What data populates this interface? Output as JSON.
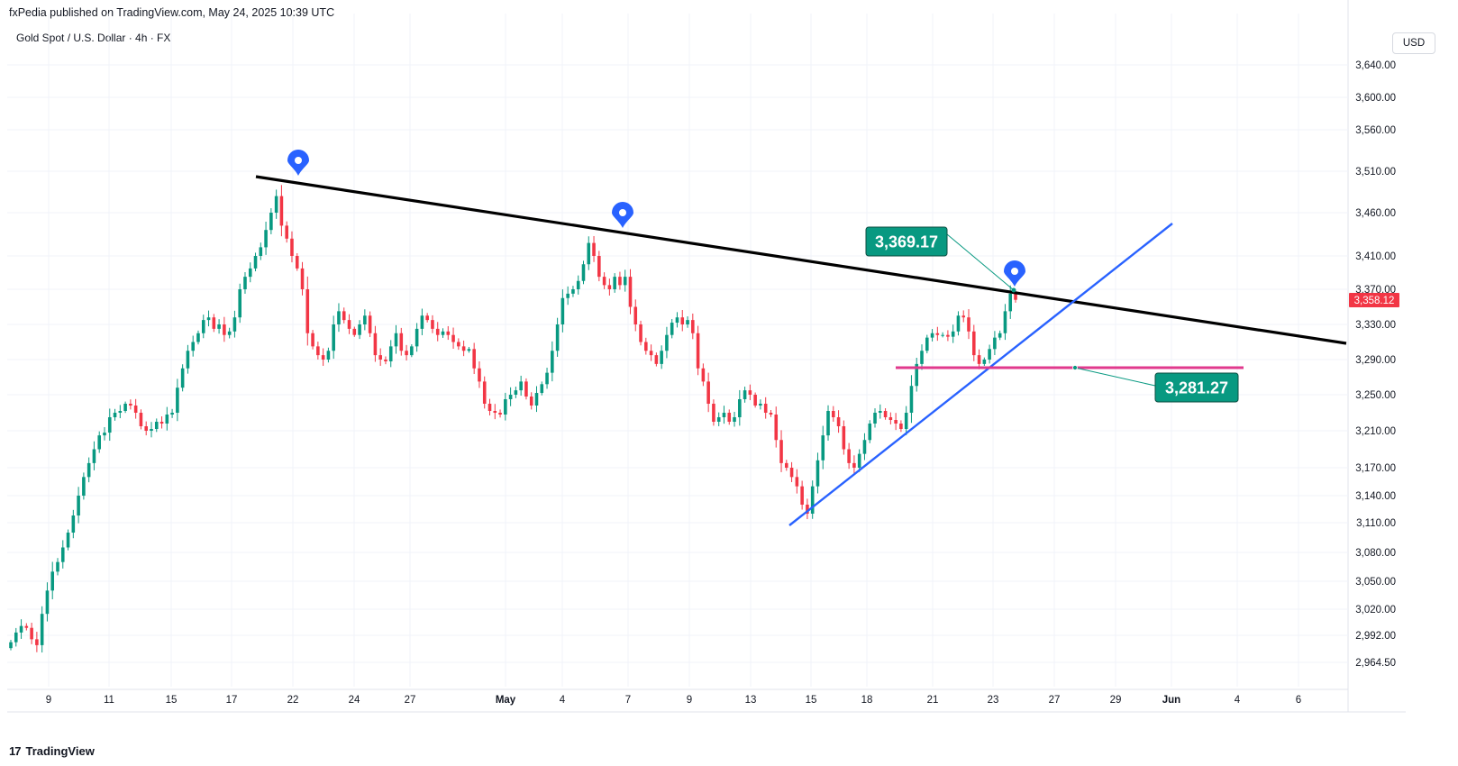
{
  "header": {
    "published": "fxPedia published on TradingView.com, May 24, 2025 10:39 UTC",
    "symbol": "Gold Spot / U.S. Dollar · 4h · FX",
    "currency": "USD"
  },
  "footer": {
    "brand": "TradingView",
    "logo": "17"
  },
  "colors": {
    "up": "#089981",
    "down": "#f23645",
    "trendline": "#000000",
    "support": "#2962ff",
    "level": "#e0398d",
    "marker": "#2962ff",
    "label_bg": "#089981",
    "price_tag_bg": "#f23645"
  },
  "chart_data": {
    "type": "candlestick",
    "title": "Gold Spot / U.S. Dollar · 4h · FX",
    "y_axis": {
      "ticks": [
        "3,640.00",
        "3,600.00",
        "3,560.00",
        "3,510.00",
        "3,460.00",
        "3,410.00",
        "3,370.00",
        "3,330.00",
        "3,290.00",
        "3,250.00",
        "3,210.00",
        "3,170.00",
        "3,140.00",
        "3,110.00",
        "3,080.00",
        "3,050.00",
        "3,020.00",
        "2,992.00",
        "2,964.50"
      ],
      "current_price": "3,358.12"
    },
    "x_axis": {
      "ticks": [
        {
          "label": "9",
          "bold": false
        },
        {
          "label": "11",
          "bold": false
        },
        {
          "label": "15",
          "bold": false
        },
        {
          "label": "17",
          "bold": false
        },
        {
          "label": "22",
          "bold": false
        },
        {
          "label": "24",
          "bold": false
        },
        {
          "label": "27",
          "bold": false
        },
        {
          "label": "May",
          "bold": true
        },
        {
          "label": "4",
          "bold": false
        },
        {
          "label": "7",
          "bold": false
        },
        {
          "label": "9",
          "bold": false
        },
        {
          "label": "13",
          "bold": false
        },
        {
          "label": "15",
          "bold": false
        },
        {
          "label": "18",
          "bold": false
        },
        {
          "label": "21",
          "bold": false
        },
        {
          "label": "23",
          "bold": false
        },
        {
          "label": "27",
          "bold": false
        },
        {
          "label": "29",
          "bold": false
        },
        {
          "label": "Jun",
          "bold": true
        },
        {
          "label": "4",
          "bold": false
        },
        {
          "label": "6",
          "bold": false
        }
      ]
    },
    "closes": [
      2985,
      2995,
      3002,
      3000,
      2988,
      2982,
      3015,
      3040,
      3060,
      3070,
      3085,
      3100,
      3118,
      3140,
      3160,
      3175,
      3190,
      3205,
      3208,
      3225,
      3230,
      3232,
      3240,
      3238,
      3230,
      3215,
      3210,
      3212,
      3220,
      3218,
      3228,
      3230,
      3258,
      3280,
      3300,
      3310,
      3320,
      3335,
      3338,
      3325,
      3330,
      3318,
      3322,
      3338,
      3370,
      3385,
      3395,
      3410,
      3420,
      3440,
      3460,
      3480,
      3445,
      3430,
      3410,
      3395,
      3370,
      3320,
      3305,
      3295,
      3290,
      3300,
      3330,
      3345,
      3335,
      3325,
      3318,
      3330,
      3340,
      3320,
      3295,
      3290,
      3288,
      3305,
      3320,
      3300,
      3295,
      3305,
      3325,
      3340,
      3335,
      3325,
      3318,
      3322,
      3318,
      3310,
      3305,
      3300,
      3302,
      3280,
      3265,
      3240,
      3232,
      3230,
      3228,
      3245,
      3250,
      3255,
      3265,
      3248,
      3238,
      3252,
      3262,
      3275,
      3300,
      3330,
      3360,
      3365,
      3370,
      3380,
      3400,
      3425,
      3410,
      3385,
      3375,
      3370,
      3385,
      3375,
      3385,
      3350,
      3330,
      3310,
      3300,
      3295,
      3285,
      3300,
      3318,
      3332,
      3338,
      3330,
      3335,
      3320,
      3280,
      3265,
      3240,
      3220,
      3225,
      3230,
      3220,
      3225,
      3245,
      3255,
      3250,
      3238,
      3240,
      3230,
      3228,
      3200,
      3175,
      3170,
      3160,
      3150,
      3130,
      3120,
      3150,
      3178,
      3205,
      3232,
      3225,
      3215,
      3190,
      3175,
      3170,
      3185,
      3200,
      3218,
      3230,
      3232,
      3225,
      3222,
      3218,
      3212,
      3230,
      3260,
      3285,
      3300,
      3315,
      3320,
      3318,
      3318,
      3316,
      3322,
      3340,
      3338,
      3322,
      3295,
      3285,
      3290,
      3302,
      3315,
      3320,
      3345,
      3365,
      3358
    ]
  },
  "annotations": {
    "label_high": "3,369.17",
    "label_level": "3,281.27"
  }
}
